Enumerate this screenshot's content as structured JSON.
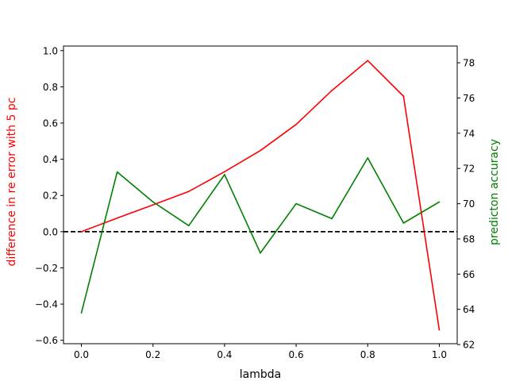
{
  "chart_data": {
    "type": "line",
    "xlabel": "lambda",
    "ylabel_left": "difference in re error with 5 pc",
    "ylabel_right": "predicton accuracy",
    "left_color": "#ff0000",
    "right_color": "#008000",
    "x": [
      0.0,
      0.1,
      0.2,
      0.3,
      0.4,
      0.5,
      0.6,
      0.7,
      0.8,
      0.9,
      1.0
    ],
    "xlim": [
      -0.05,
      1.05
    ],
    "ylim_left": [
      -0.6188,
      1.0253
    ],
    "ylim_right": [
      62.05,
      78.95
    ],
    "xticks": [
      "0.0",
      "0.2",
      "0.4",
      "0.6",
      "0.8",
      "1.0"
    ],
    "xtick_values": [
      0.0,
      0.2,
      0.4,
      0.6,
      0.8,
      1.0
    ],
    "yticks_left": [
      "−0.6",
      "−0.4",
      "−0.2",
      "0.0",
      "0.2",
      "0.4",
      "0.6",
      "0.8",
      "1.0"
    ],
    "ytick_values_left": [
      -0.6,
      -0.4,
      -0.2,
      0.0,
      0.2,
      0.4,
      0.6,
      0.8,
      1.0
    ],
    "yticks_right": [
      "62",
      "64",
      "66",
      "68",
      "70",
      "72",
      "74",
      "76",
      "78"
    ],
    "ytick_values_right": [
      62,
      64,
      66,
      68,
      70,
      72,
      74,
      76,
      78
    ],
    "reference_line": {
      "axis": "left",
      "y": 0.0,
      "style": "dashed",
      "color": "#000000"
    },
    "series": [
      {
        "axis": "left",
        "color": "#ff0000",
        "values": [
          0.0,
          0.075,
          0.148,
          0.222,
          0.331,
          0.448,
          0.592,
          0.78,
          0.945,
          0.748,
          -0.543
        ]
      },
      {
        "axis": "right",
        "color": "#008000",
        "values": [
          63.8,
          71.8,
          70.1,
          68.75,
          71.65,
          67.2,
          70.0,
          69.15,
          72.6,
          68.9,
          70.1
        ]
      }
    ]
  }
}
